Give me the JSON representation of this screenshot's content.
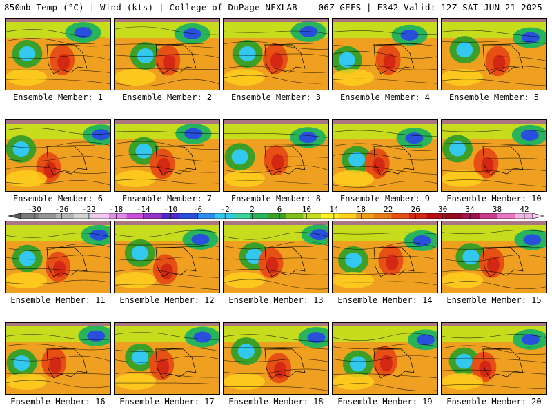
{
  "header": {
    "left": "850mb Temp (°C) | Wind (kts) | College of DuPage NEXLAB",
    "right": "06Z GEFS | F342 Valid: 12Z SAT JUN 21 2025"
  },
  "member_label_prefix": "Ensemble Member:",
  "members": [
    "1",
    "2",
    "3",
    "4",
    "5",
    "6",
    "7",
    "8",
    "9",
    "10",
    "11",
    "12",
    "13",
    "14",
    "15",
    "16",
    "17",
    "18",
    "19",
    "20"
  ],
  "colorbar": {
    "tick_labels": [
      "-30",
      "-26",
      "-22",
      "-18",
      "-14",
      "-10",
      "-6",
      "-2",
      "2",
      "6",
      "10",
      "14",
      "18",
      "22",
      "26",
      "30",
      "34",
      "38",
      "42"
    ],
    "colors": [
      "#7a7a7a",
      "#969696",
      "#b4b4b4",
      "#d2d2d2",
      "#f0c8f0",
      "#e08ce6",
      "#c850d8",
      "#9632c8",
      "#5028c8",
      "#2850dc",
      "#2d8ced",
      "#32c8f0",
      "#3cd2a0",
      "#28b45a",
      "#3ca028",
      "#82be1e",
      "#c8dc1e",
      "#fff028",
      "#ffd21e",
      "#f0a020",
      "#eb7d19",
      "#e65014",
      "#d22814",
      "#b40f14",
      "#960a1e",
      "#a01450",
      "#c83c8c",
      "#e678c3",
      "#f0b4e1"
    ]
  }
}
